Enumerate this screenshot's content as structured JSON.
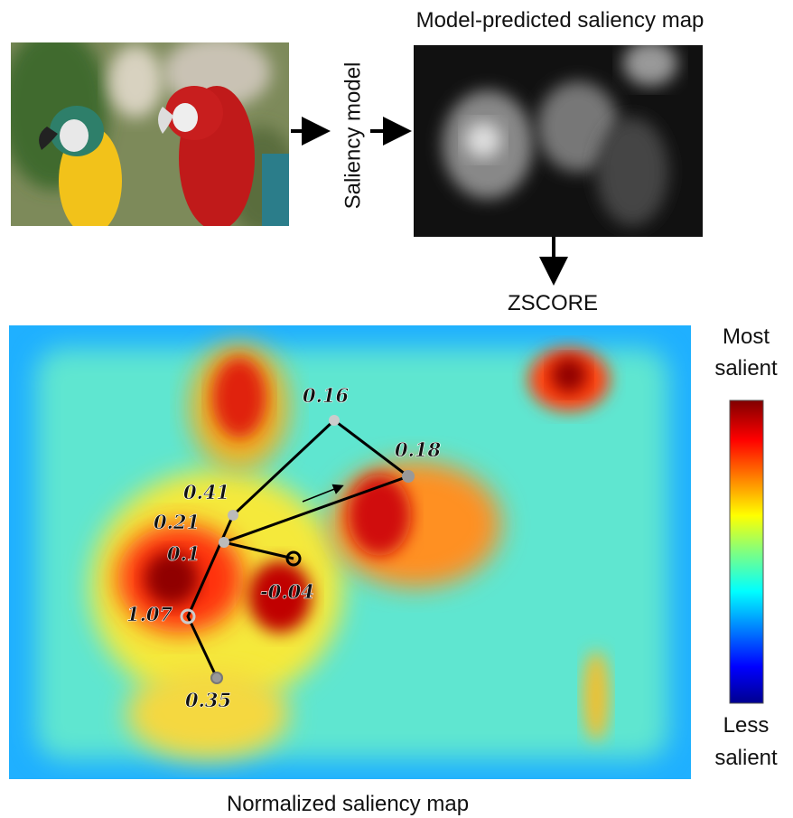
{
  "pipeline": {
    "model_label": "Saliency model",
    "predicted_title": "Model-predicted saliency map",
    "zscore_label": "ZSCORE",
    "normalized_title": "Normalized saliency map"
  },
  "colorbar": {
    "top_line1": "Most",
    "top_line2": "salient",
    "bottom_line1": "Less",
    "bottom_line2": "salient"
  },
  "fixations": [
    {
      "label": "0.35"
    },
    {
      "label": "1.07"
    },
    {
      "label": "0.1"
    },
    {
      "label": "0.21"
    },
    {
      "label": "0.41"
    },
    {
      "label": "0.16"
    },
    {
      "label": "0.18"
    },
    {
      "label": "-0.04"
    }
  ]
}
